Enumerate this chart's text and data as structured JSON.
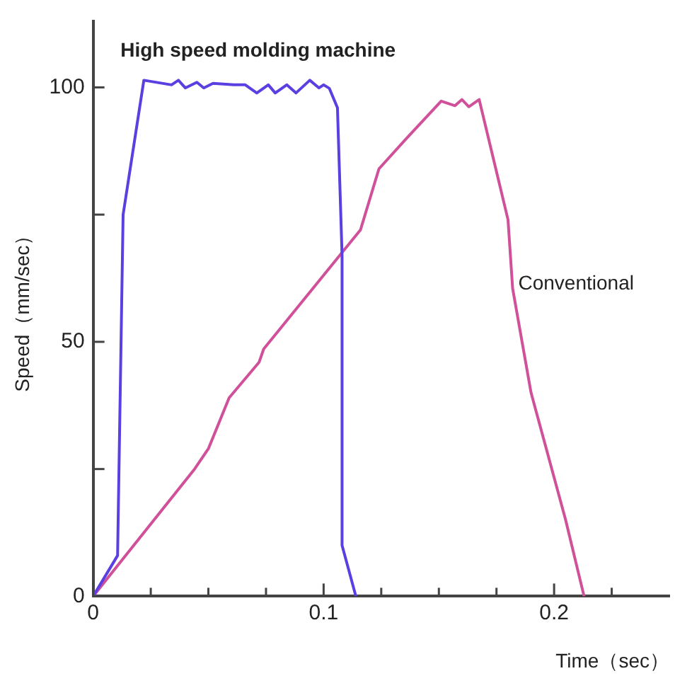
{
  "chart_data": {
    "type": "line",
    "xlabel": "Time（sec）",
    "ylabel": "Speed（mm/sec）",
    "xlim": [
      0,
      0.25
    ],
    "ylim": [
      0,
      113
    ],
    "xticks": [
      0,
      {
        "value": 0.025,
        "label": null
      },
      {
        "value": 0.05,
        "label": null
      },
      {
        "value": 0.075,
        "label": null
      },
      0.1,
      {
        "value": 0.125,
        "label": null
      },
      {
        "value": 0.15,
        "label": null
      },
      {
        "value": 0.175,
        "label": null
      },
      0.2,
      {
        "value": 0.225,
        "label": null
      }
    ],
    "yticks": [
      0,
      {
        "value": 25,
        "label": null
      },
      50,
      {
        "value": 75,
        "label": null
      },
      100
    ],
    "grid": false,
    "legend": false,
    "marker": "none",
    "line_style": "solid",
    "series": [
      {
        "name": "High speed molding machine",
        "color": "#5b3fe0",
        "x": [
          0,
          0.0106,
          0.013,
          0.022,
          0.034,
          0.037,
          0.04,
          0.045,
          0.048,
          0.052,
          0.061,
          0.066,
          0.071,
          0.076,
          0.079,
          0.084,
          0.088,
          0.094,
          0.098,
          0.1,
          0.1025,
          0.106,
          0.108,
          0.108,
          0.114
        ],
        "values": [
          0,
          8,
          75,
          101.4,
          100.5,
          101.4,
          99.9,
          101,
          99.9,
          100.8,
          100.5,
          100.5,
          98.9,
          100.5,
          98.9,
          100.5,
          98.9,
          101.4,
          99.9,
          100.5,
          99.8,
          96,
          67,
          10,
          0
        ]
      },
      {
        "name": "Conventional",
        "color": "#d0509a",
        "x": [
          0,
          0.044,
          0.05,
          0.059,
          0.072,
          0.074,
          0.107,
          0.116,
          0.124,
          0.136,
          0.151,
          0.157,
          0.16,
          0.163,
          0.1675,
          0.18,
          0.182,
          0.19,
          0.205,
          0.213
        ],
        "values": [
          0,
          25,
          29,
          39,
          46,
          48.6,
          67,
          72,
          84,
          90,
          97.3,
          96.4,
          97.6,
          96.2,
          97.6,
          74,
          60.5,
          40,
          15,
          0
        ]
      }
    ]
  }
}
